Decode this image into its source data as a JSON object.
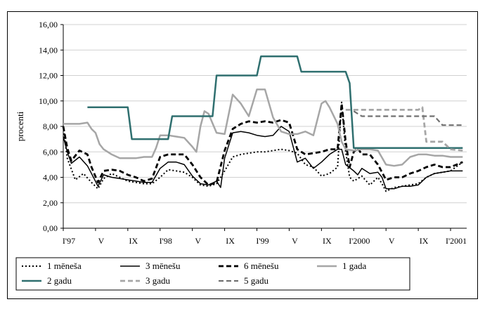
{
  "chart_data": {
    "type": "line",
    "title": "",
    "xlabel": "",
    "ylabel": "procenti",
    "ylim": [
      0,
      16
    ],
    "yticks": [
      "0,00",
      "2,00",
      "4,00",
      "6,00",
      "8,00",
      "10,00",
      "12,00",
      "14,00",
      "16,00"
    ],
    "xlim": [
      0,
      50
    ],
    "xticks": [
      {
        "x": 0,
        "label": "I'97"
      },
      {
        "x": 4,
        "label": "V"
      },
      {
        "x": 8,
        "label": "IX"
      },
      {
        "x": 12,
        "label": "I'98"
      },
      {
        "x": 16,
        "label": "V"
      },
      {
        "x": 20,
        "label": "IX"
      },
      {
        "x": 24,
        "label": "I'99"
      },
      {
        "x": 28,
        "label": "V"
      },
      {
        "x": 32,
        "label": "IX"
      },
      {
        "x": 36,
        "label": "I'2000"
      },
      {
        "x": 40,
        "label": "V"
      },
      {
        "x": 44,
        "label": "IX"
      },
      {
        "x": 48,
        "label": "I'2001"
      }
    ],
    "grid": "horizontal",
    "legend_position": "bottom",
    "series": [
      {
        "name": "1 mēneša",
        "color": "#000000",
        "style": "dotted",
        "width": 2,
        "points": [
          [
            0,
            8.0
          ],
          [
            0.5,
            5.5
          ],
          [
            1.5,
            3.8
          ],
          [
            2.5,
            4.3
          ],
          [
            3.5,
            3.6
          ],
          [
            4.3,
            3.1
          ],
          [
            5,
            3.9
          ],
          [
            6,
            4.3
          ],
          [
            7,
            4.0
          ],
          [
            8,
            3.7
          ],
          [
            9,
            3.6
          ],
          [
            10,
            3.5
          ],
          [
            11,
            3.5
          ],
          [
            12,
            4.0
          ],
          [
            13,
            4.6
          ],
          [
            14,
            4.5
          ],
          [
            15,
            4.4
          ],
          [
            16,
            4.0
          ],
          [
            17,
            3.4
          ],
          [
            18,
            3.3
          ],
          [
            19,
            3.5
          ],
          [
            20,
            4.5
          ],
          [
            21,
            5.6
          ],
          [
            22,
            5.8
          ],
          [
            23,
            5.9
          ],
          [
            24,
            6.0
          ],
          [
            25,
            6.0
          ],
          [
            26,
            6.1
          ],
          [
            27,
            6.2
          ],
          [
            28,
            6.1
          ],
          [
            29,
            5.9
          ],
          [
            30,
            5.0
          ],
          [
            31,
            4.8
          ],
          [
            32,
            4.1
          ],
          [
            33,
            4.3
          ],
          [
            34,
            4.8
          ],
          [
            34.5,
            9.9
          ],
          [
            35,
            6.0
          ],
          [
            35.5,
            4.0
          ],
          [
            36,
            3.7
          ],
          [
            37,
            4.1
          ],
          [
            38,
            3.4
          ],
          [
            39,
            4.0
          ],
          [
            39.5,
            3.5
          ],
          [
            40,
            2.9
          ],
          [
            41,
            3.2
          ],
          [
            42,
            3.3
          ],
          [
            43,
            3.4
          ],
          [
            44,
            3.5
          ],
          [
            45,
            4.0
          ],
          [
            46,
            4.3
          ],
          [
            47,
            4.4
          ],
          [
            48,
            4.5
          ],
          [
            49.5,
            5.2
          ]
        ]
      },
      {
        "name": "3 mēnešu",
        "color": "#000000",
        "style": "solid",
        "width": 1.5,
        "points": [
          [
            0,
            7.2
          ],
          [
            0.5,
            6.0
          ],
          [
            1,
            5.1
          ],
          [
            2,
            5.6
          ],
          [
            3,
            4.9
          ],
          [
            3.5,
            4.3
          ],
          [
            4.3,
            3.3
          ],
          [
            5,
            4.2
          ],
          [
            6,
            4.0
          ],
          [
            7,
            3.9
          ],
          [
            8,
            3.8
          ],
          [
            9,
            3.7
          ],
          [
            10,
            3.6
          ],
          [
            11,
            3.6
          ],
          [
            12,
            4.7
          ],
          [
            13,
            5.2
          ],
          [
            14,
            5.2
          ],
          [
            15,
            5.0
          ],
          [
            16,
            4.1
          ],
          [
            17,
            3.5
          ],
          [
            18,
            3.4
          ],
          [
            19,
            3.7
          ],
          [
            19.5,
            3.2
          ],
          [
            20,
            5.5
          ],
          [
            21,
            7.5
          ],
          [
            22,
            7.6
          ],
          [
            23,
            7.5
          ],
          [
            24,
            7.3
          ],
          [
            25,
            7.2
          ],
          [
            26,
            7.3
          ],
          [
            27,
            8.0
          ],
          [
            28,
            7.6
          ],
          [
            29,
            5.2
          ],
          [
            30,
            5.5
          ],
          [
            31,
            4.7
          ],
          [
            32,
            5.2
          ],
          [
            33,
            5.8
          ],
          [
            34,
            6.2
          ],
          [
            34.5,
            6.2
          ],
          [
            35,
            5.0
          ],
          [
            36,
            4.5
          ],
          [
            36.5,
            4.2
          ],
          [
            37,
            4.7
          ],
          [
            38,
            4.3
          ],
          [
            39,
            4.4
          ],
          [
            39.5,
            4.0
          ],
          [
            40,
            3.1
          ],
          [
            41,
            3.1
          ],
          [
            42,
            3.3
          ],
          [
            43,
            3.3
          ],
          [
            44,
            3.4
          ],
          [
            45,
            4.0
          ],
          [
            46,
            4.3
          ],
          [
            47,
            4.4
          ],
          [
            48,
            4.5
          ],
          [
            49.5,
            4.5
          ]
        ]
      },
      {
        "name": "6 mēnešu",
        "color": "#000000",
        "style": "dashed",
        "width": 2.8,
        "points": [
          [
            0,
            8.0
          ],
          [
            0.5,
            6.3
          ],
          [
            1,
            5.3
          ],
          [
            2,
            6.1
          ],
          [
            3,
            5.8
          ],
          [
            3.5,
            4.8
          ],
          [
            4.3,
            3.6
          ],
          [
            5,
            4.5
          ],
          [
            6,
            4.6
          ],
          [
            7,
            4.5
          ],
          [
            8,
            4.2
          ],
          [
            9,
            4.0
          ],
          [
            10,
            3.7
          ],
          [
            11,
            3.9
          ],
          [
            12,
            5.6
          ],
          [
            13,
            5.8
          ],
          [
            14,
            5.8
          ],
          [
            15,
            5.8
          ],
          [
            16,
            5.0
          ],
          [
            17,
            4.0
          ],
          [
            18,
            3.4
          ],
          [
            19,
            3.6
          ],
          [
            20,
            6.1
          ],
          [
            21,
            7.8
          ],
          [
            22,
            8.2
          ],
          [
            23,
            8.4
          ],
          [
            24,
            8.3
          ],
          [
            25,
            8.4
          ],
          [
            26,
            8.3
          ],
          [
            27,
            8.5
          ],
          [
            28,
            8.3
          ],
          [
            29,
            6.2
          ],
          [
            30,
            5.8
          ],
          [
            31,
            5.9
          ],
          [
            32,
            6.0
          ],
          [
            33,
            6.2
          ],
          [
            34,
            6.2
          ],
          [
            34.5,
            9.8
          ],
          [
            35,
            6.8
          ],
          [
            35.5,
            4.8
          ],
          [
            36,
            6.0
          ],
          [
            36.5,
            6.3
          ],
          [
            37,
            5.8
          ],
          [
            38,
            5.8
          ],
          [
            39,
            5.0
          ],
          [
            40,
            3.8
          ],
          [
            41,
            4.0
          ],
          [
            42,
            4.0
          ],
          [
            43,
            4.3
          ],
          [
            44,
            4.5
          ],
          [
            45,
            4.8
          ],
          [
            46,
            5.0
          ],
          [
            47,
            4.8
          ],
          [
            48,
            4.8
          ],
          [
            49.5,
            5.2
          ]
        ]
      },
      {
        "name": "1 gada",
        "color": "#a6a6a6",
        "style": "solid",
        "width": 2.5,
        "points": [
          [
            0,
            8.2
          ],
          [
            1,
            8.2
          ],
          [
            2,
            8.2
          ],
          [
            3,
            8.3
          ],
          [
            3.5,
            7.8
          ],
          [
            4,
            7.5
          ],
          [
            4.5,
            6.6
          ],
          [
            5,
            6.2
          ],
          [
            6,
            5.8
          ],
          [
            7,
            5.5
          ],
          [
            8,
            5.5
          ],
          [
            9,
            5.5
          ],
          [
            10,
            5.6
          ],
          [
            11,
            5.6
          ],
          [
            11.5,
            6.3
          ],
          [
            12,
            7.3
          ],
          [
            13,
            7.3
          ],
          [
            14,
            7.2
          ],
          [
            15,
            7.1
          ],
          [
            16,
            6.4
          ],
          [
            16.5,
            6.0
          ],
          [
            17,
            8.0
          ],
          [
            17.5,
            9.2
          ],
          [
            18,
            9.0
          ],
          [
            19,
            7.5
          ],
          [
            20,
            7.4
          ],
          [
            21,
            10.5
          ],
          [
            22,
            9.8
          ],
          [
            23,
            8.8
          ],
          [
            24,
            10.9
          ],
          [
            25,
            10.9
          ],
          [
            26,
            8.7
          ],
          [
            27,
            7.6
          ],
          [
            28,
            7.4
          ],
          [
            29,
            7.4
          ],
          [
            30,
            7.6
          ],
          [
            31,
            7.3
          ],
          [
            32,
            9.8
          ],
          [
            32.5,
            10.0
          ],
          [
            33,
            9.5
          ],
          [
            34,
            8.2
          ],
          [
            34.5,
            6.8
          ],
          [
            35,
            6.2
          ],
          [
            36,
            6.1
          ],
          [
            37,
            6.2
          ],
          [
            38,
            6.2
          ],
          [
            39,
            6.1
          ],
          [
            40,
            5.0
          ],
          [
            41,
            4.9
          ],
          [
            42,
            5.0
          ],
          [
            43,
            5.6
          ],
          [
            44,
            5.8
          ],
          [
            45,
            5.8
          ],
          [
            46,
            5.7
          ],
          [
            47,
            5.7
          ],
          [
            48,
            5.6
          ],
          [
            49.5,
            5.6
          ]
        ]
      },
      {
        "name": "2 gadu",
        "color": "#2f6f6f",
        "style": "solid",
        "width": 2.5,
        "points": [
          [
            3,
            9.5
          ],
          [
            8,
            9.5
          ],
          [
            8.5,
            7.0
          ],
          [
            13,
            7.0
          ],
          [
            13.5,
            8.8
          ],
          [
            18.5,
            8.8
          ],
          [
            19,
            12.0
          ],
          [
            24,
            12.0
          ],
          [
            24.5,
            13.5
          ],
          [
            29,
            13.5
          ],
          [
            29.5,
            12.3
          ],
          [
            35,
            12.3
          ],
          [
            35.5,
            11.4
          ],
          [
            36,
            6.3
          ],
          [
            49.5,
            6.3
          ]
        ]
      },
      {
        "name": "3 gadu",
        "color": "#a6a6a6",
        "style": "dashed",
        "width": 2.8,
        "points": [
          [
            35,
            9.3
          ],
          [
            44,
            9.3
          ],
          [
            44.5,
            9.5
          ],
          [
            45,
            6.8
          ],
          [
            46,
            6.8
          ],
          [
            47,
            6.8
          ],
          [
            47.5,
            6.5
          ],
          [
            48,
            6.2
          ],
          [
            49.5,
            6.1
          ]
        ]
      },
      {
        "name": "5 gadu",
        "color": "#707070",
        "style": "dashed",
        "width": 2.2,
        "points": [
          [
            36,
            9.2
          ],
          [
            37,
            8.8
          ],
          [
            44,
            8.8
          ],
          [
            46,
            8.8
          ],
          [
            47,
            8.1
          ],
          [
            49.5,
            8.1
          ]
        ]
      }
    ]
  }
}
